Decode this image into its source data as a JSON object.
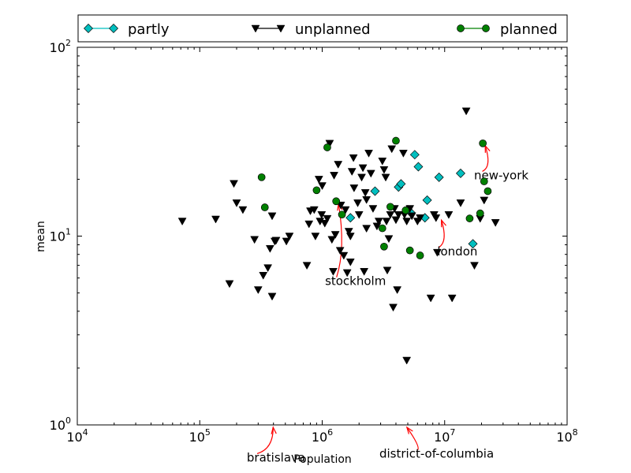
{
  "chart_data": {
    "type": "scatter",
    "x_scale": "log",
    "y_scale": "log",
    "xlim": [
      10000,
      100000000
    ],
    "ylim": [
      1,
      100
    ],
    "xlabel": "Population",
    "ylabel": "mean",
    "x_ticks": [
      {
        "value": 10000,
        "base": "10",
        "exp": "4"
      },
      {
        "value": 100000,
        "base": "10",
        "exp": "5"
      },
      {
        "value": 1000000,
        "base": "10",
        "exp": "6"
      },
      {
        "value": 10000000,
        "base": "10",
        "exp": "7"
      },
      {
        "value": 100000000,
        "base": "10",
        "exp": "8"
      }
    ],
    "y_ticks": [
      {
        "value": 1,
        "base": "10",
        "exp": "0"
      },
      {
        "value": 10,
        "base": "10",
        "exp": "1"
      },
      {
        "value": 100,
        "base": "10",
        "exp": "2"
      }
    ],
    "grid": false,
    "legend_position": "top, above plot",
    "series": [
      {
        "name": "partly",
        "marker": "diamond",
        "color": "#00bfbf",
        "points": [
          [
            1700000,
            12.5
          ],
          [
            2700000,
            17.3
          ],
          [
            4200000,
            18.2
          ],
          [
            4400000,
            18.9
          ],
          [
            5000000,
            13.8
          ],
          [
            5300000,
            13.3
          ],
          [
            5700000,
            27
          ],
          [
            6100000,
            23.3
          ],
          [
            6900000,
            12.5
          ],
          [
            7200000,
            15.5
          ],
          [
            9000000,
            20.5
          ],
          [
            13500000,
            21.5
          ],
          [
            17000000,
            9.1
          ]
        ]
      },
      {
        "name": "unplanned",
        "marker": "triangle-down",
        "color": "#000000",
        "points": [
          [
            72000,
            12
          ],
          [
            135000,
            12.3
          ],
          [
            175000,
            5.6
          ],
          [
            190000,
            19
          ],
          [
            200000,
            15
          ],
          [
            225000,
            13.8
          ],
          [
            280000,
            9.6
          ],
          [
            300000,
            5.2
          ],
          [
            330000,
            6.2
          ],
          [
            360000,
            6.8
          ],
          [
            375000,
            8.6
          ],
          [
            390000,
            12.8
          ],
          [
            390000,
            4.8
          ],
          [
            410000,
            9.4
          ],
          [
            420000,
            9.5
          ],
          [
            510000,
            9.4
          ],
          [
            540000,
            10
          ],
          [
            750000,
            7
          ],
          [
            780000,
            11.6
          ],
          [
            800000,
            13.6
          ],
          [
            860000,
            13.8
          ],
          [
            880000,
            10
          ],
          [
            940000,
            20
          ],
          [
            960000,
            12
          ],
          [
            990000,
            13
          ],
          [
            1000000,
            18.5
          ],
          [
            1050000,
            11.7
          ],
          [
            1100000,
            12.4
          ],
          [
            1150000,
            31
          ],
          [
            1200000,
            9.6
          ],
          [
            1230000,
            6.5
          ],
          [
            1250000,
            21
          ],
          [
            1280000,
            10.2
          ],
          [
            1350000,
            24
          ],
          [
            1400000,
            8.4
          ],
          [
            1420000,
            14.6
          ],
          [
            1500000,
            7.9
          ],
          [
            1550000,
            13.8
          ],
          [
            1600000,
            6.4
          ],
          [
            1650000,
            10.6
          ],
          [
            1700000,
            7.3
          ],
          [
            1700000,
            10
          ],
          [
            1750000,
            22
          ],
          [
            1800000,
            26
          ],
          [
            1820000,
            18
          ],
          [
            1950000,
            15
          ],
          [
            2000000,
            13
          ],
          [
            2100000,
            20.5
          ],
          [
            2150000,
            23
          ],
          [
            2200000,
            6.5
          ],
          [
            2250000,
            17
          ],
          [
            2300000,
            15.6
          ],
          [
            2300000,
            11
          ],
          [
            2400000,
            27.5
          ],
          [
            2500000,
            21.5
          ],
          [
            2600000,
            14
          ],
          [
            2800000,
            11.3
          ],
          [
            2900000,
            12
          ],
          [
            3100000,
            25
          ],
          [
            3200000,
            22.5
          ],
          [
            3300000,
            20.5
          ],
          [
            3350000,
            12
          ],
          [
            3400000,
            6.6
          ],
          [
            3500000,
            9.7
          ],
          [
            3600000,
            13
          ],
          [
            3700000,
            29
          ],
          [
            3800000,
            4.2
          ],
          [
            3900000,
            14
          ],
          [
            4000000,
            12.2
          ],
          [
            4100000,
            5.2
          ],
          [
            4200000,
            13
          ],
          [
            4600000,
            27.5
          ],
          [
            4700000,
            13
          ],
          [
            4900000,
            2.2
          ],
          [
            4900000,
            12
          ],
          [
            5200000,
            14
          ],
          [
            5400000,
            12.8
          ],
          [
            6000000,
            12
          ],
          [
            6300000,
            12.5
          ],
          [
            7700000,
            4.7
          ],
          [
            8200000,
            13
          ],
          [
            8500000,
            12.5
          ],
          [
            8700000,
            8.2
          ],
          [
            10800000,
            13
          ],
          [
            11500000,
            4.7
          ],
          [
            13500000,
            15
          ],
          [
            15000000,
            46
          ],
          [
            17500000,
            7
          ],
          [
            19500000,
            12.4
          ],
          [
            21000000,
            15.5
          ],
          [
            26000000,
            11.8
          ]
        ]
      },
      {
        "name": "planned",
        "marker": "circle",
        "color": "#008000",
        "points": [
          [
            320000,
            20.5
          ],
          [
            340000,
            14.2
          ],
          [
            900000,
            17.5
          ],
          [
            1100000,
            29.5
          ],
          [
            1300000,
            15.3
          ],
          [
            1450000,
            13
          ],
          [
            3100000,
            11
          ],
          [
            3200000,
            8.8
          ],
          [
            3600000,
            14.3
          ],
          [
            4000000,
            32
          ],
          [
            4800000,
            13.7
          ],
          [
            5200000,
            8.4
          ],
          [
            6300000,
            7.9
          ],
          [
            16000000,
            12.4
          ],
          [
            19500000,
            13.2
          ],
          [
            20500000,
            31
          ],
          [
            21000000,
            19.5
          ],
          [
            22500000,
            17.3
          ]
        ]
      }
    ],
    "annotations": [
      {
        "text": "new-york",
        "x": 20500000,
        "y": 31,
        "text_x": 29000000,
        "text_y": 20
      },
      {
        "text": "london",
        "x": 9000000,
        "y": 12.5,
        "text_x": 12700000,
        "text_y": 7.9
      },
      {
        "text": "stockholm",
        "x": 1300000,
        "y": 15.3,
        "text_x": 1870000,
        "text_y": 5.5
      },
      {
        "text": "bratislava",
        "x": 380000,
        "y": 1,
        "text_x": 420000,
        "text_y": 0.64
      },
      {
        "text": "district-of-columbia",
        "x": 4700000,
        "y": 1,
        "text_x": 8600000,
        "text_y": 0.67
      }
    ]
  }
}
